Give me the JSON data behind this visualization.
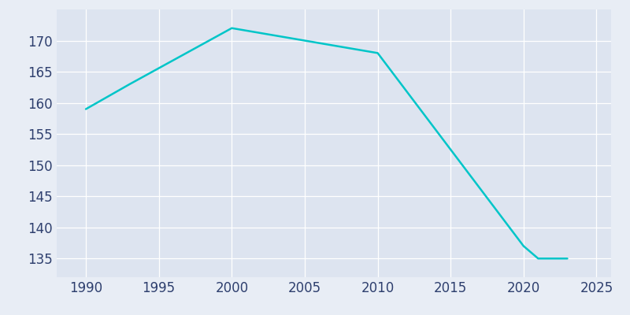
{
  "x": [
    1990,
    1993,
    2000,
    2010,
    2020,
    2021,
    2022,
    2023
  ],
  "y": [
    159,
    163,
    172,
    168,
    137,
    135,
    135,
    135
  ],
  "line_color": "#00c5c8",
  "line_width": 1.8,
  "background_color": "#e8edf5",
  "plot_bg_color": "#dde4f0",
  "xlabel": "",
  "ylabel": "",
  "xlim": [
    1988,
    2026
  ],
  "ylim": [
    132,
    175
  ],
  "xticks": [
    1990,
    1995,
    2000,
    2005,
    2010,
    2015,
    2020,
    2025
  ],
  "yticks": [
    135,
    140,
    145,
    150,
    155,
    160,
    165,
    170
  ],
  "tick_color": "#2e3f6e",
  "tick_fontsize": 12,
  "grid_color": "#ffffff",
  "grid_alpha": 1.0,
  "grid_linewidth": 0.9
}
